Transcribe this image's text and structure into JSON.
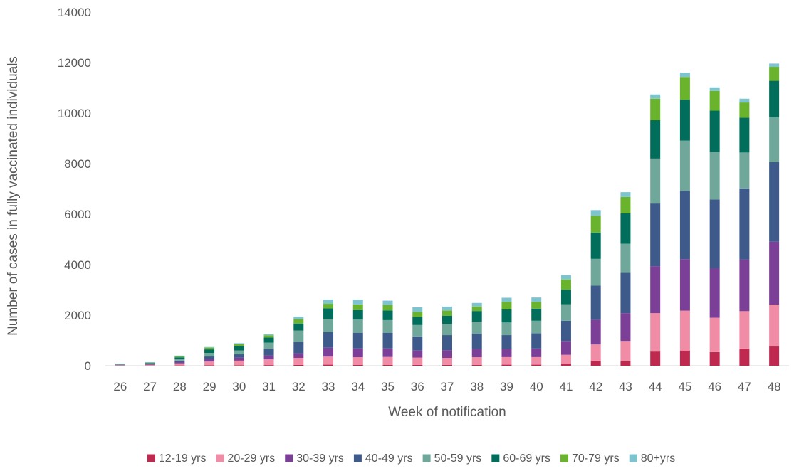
{
  "chart_data": {
    "type": "bar",
    "stacked": true,
    "title": "",
    "xlabel": "Week of notification",
    "ylabel": "Number of cases in fully vaccinated individuals",
    "ylim": [
      0,
      14000
    ],
    "yticks": [
      "0",
      "2000",
      "4000",
      "6000",
      "8000",
      "10000",
      "12000",
      "14000"
    ],
    "grid": false,
    "legend_position": "bottom",
    "categories": [
      "26",
      "27",
      "28",
      "29",
      "30",
      "31",
      "32",
      "33",
      "34",
      "35",
      "36",
      "37",
      "38",
      "39",
      "40",
      "41",
      "42",
      "43",
      "44",
      "45",
      "46",
      "47",
      "48"
    ],
    "series": [
      {
        "name": "12-19 yrs",
        "color": "#c0294f",
        "values": [
          0,
          0,
          10,
          15,
          20,
          25,
          30,
          40,
          35,
          35,
          30,
          30,
          35,
          40,
          40,
          80,
          200,
          180,
          560,
          600,
          540,
          680,
          760
        ]
      },
      {
        "name": "20-29 yrs",
        "color": "#f08ca6",
        "values": [
          20,
          30,
          80,
          150,
          180,
          230,
          280,
          320,
          300,
          310,
          290,
          280,
          300,
          300,
          300,
          350,
          640,
          800,
          1520,
          1580,
          1360,
          1480,
          1660
        ]
      },
      {
        "name": "30-39 yrs",
        "color": "#7b3f98",
        "values": [
          10,
          20,
          50,
          100,
          120,
          150,
          180,
          350,
          350,
          340,
          280,
          300,
          330,
          330,
          340,
          550,
          980,
          1100,
          1860,
          2040,
          1960,
          2040,
          2490
        ]
      },
      {
        "name": "40-49 yrs",
        "color": "#3d5a8a",
        "values": [
          10,
          20,
          60,
          100,
          130,
          260,
          450,
          620,
          620,
          620,
          560,
          600,
          600,
          540,
          600,
          800,
          1350,
          1600,
          2480,
          2700,
          2720,
          2820,
          3150
        ]
      },
      {
        "name": "50-59 yrs",
        "color": "#6fa89a",
        "values": [
          20,
          30,
          70,
          140,
          150,
          250,
          450,
          520,
          520,
          500,
          450,
          450,
          480,
          500,
          500,
          650,
          1060,
          1150,
          1780,
          1990,
          1880,
          1420,
          1770
        ]
      },
      {
        "name": "60-69 yrs",
        "color": "#006e5b",
        "values": [
          10,
          20,
          60,
          140,
          180,
          200,
          280,
          420,
          380,
          380,
          320,
          320,
          420,
          520,
          480,
          580,
          1040,
          1200,
          1520,
          1620,
          1640,
          1380,
          1450
        ]
      },
      {
        "name": "70-79 yrs",
        "color": "#6ab42d",
        "values": [
          5,
          10,
          40,
          60,
          70,
          90,
          170,
          180,
          220,
          220,
          200,
          200,
          180,
          300,
          270,
          400,
          660,
          650,
          850,
          900,
          780,
          600,
          550
        ]
      },
      {
        "name": "80+yrs",
        "color": "#7ec4cf",
        "values": [
          5,
          10,
          30,
          35,
          40,
          45,
          100,
          170,
          190,
          170,
          180,
          160,
          140,
          160,
          170,
          180,
          230,
          190,
          170,
          170,
          140,
          150,
          130
        ]
      }
    ]
  }
}
